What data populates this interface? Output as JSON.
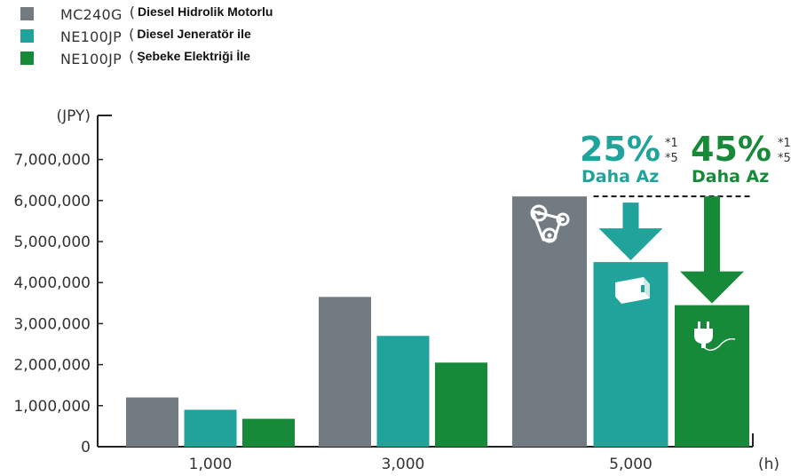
{
  "legend": [
    {
      "code": "MC240G",
      "desc": "Diesel Hidrolik Motorlu",
      "color": "#737b82"
    },
    {
      "code": "NE100JP",
      "desc": "Diesel Jeneratör ile",
      "color": "#20a39a"
    },
    {
      "code": "NE100JP",
      "desc": "Şebeke Elektriği İle",
      "color": "#178a3a"
    }
  ],
  "annotations": {
    "left": {
      "percent": "25%",
      "label": "Daha Az",
      "footnote": [
        "*1",
        "*5"
      ],
      "color": "#20a39a"
    },
    "right": {
      "percent": "45%",
      "label": "Daha Az",
      "footnote": [
        "*1",
        "*5"
      ],
      "color": "#178a3a"
    }
  },
  "icons": [
    "belt-drive-icon",
    "generator-icon",
    "electric-plug-icon"
  ],
  "chart_data": {
    "type": "bar",
    "ylabel": "(JPY)",
    "xlabel": "(h)",
    "categories": [
      "1,000",
      "3,000",
      "5,000"
    ],
    "yticks": [
      "0",
      "1,000,000",
      "2,000,000",
      "3,000,000",
      "4,000,000",
      "5,000,000",
      "6,000,000",
      "7,000,000"
    ],
    "ylim": [
      0,
      8000000
    ],
    "series": [
      {
        "name": "MC240G (Diesel Hidrolik Motorlu)",
        "values": [
          1200000,
          3650000,
          6100000
        ]
      },
      {
        "name": "NE100JP (Diesel Jeneratör ile)",
        "values": [
          900000,
          2700000,
          4500000
        ]
      },
      {
        "name": "NE100JP (Şebeke Elektriği İle)",
        "values": [
          680000,
          2050000,
          3450000
        ]
      }
    ],
    "grid": false,
    "legend_position": "top-left"
  }
}
